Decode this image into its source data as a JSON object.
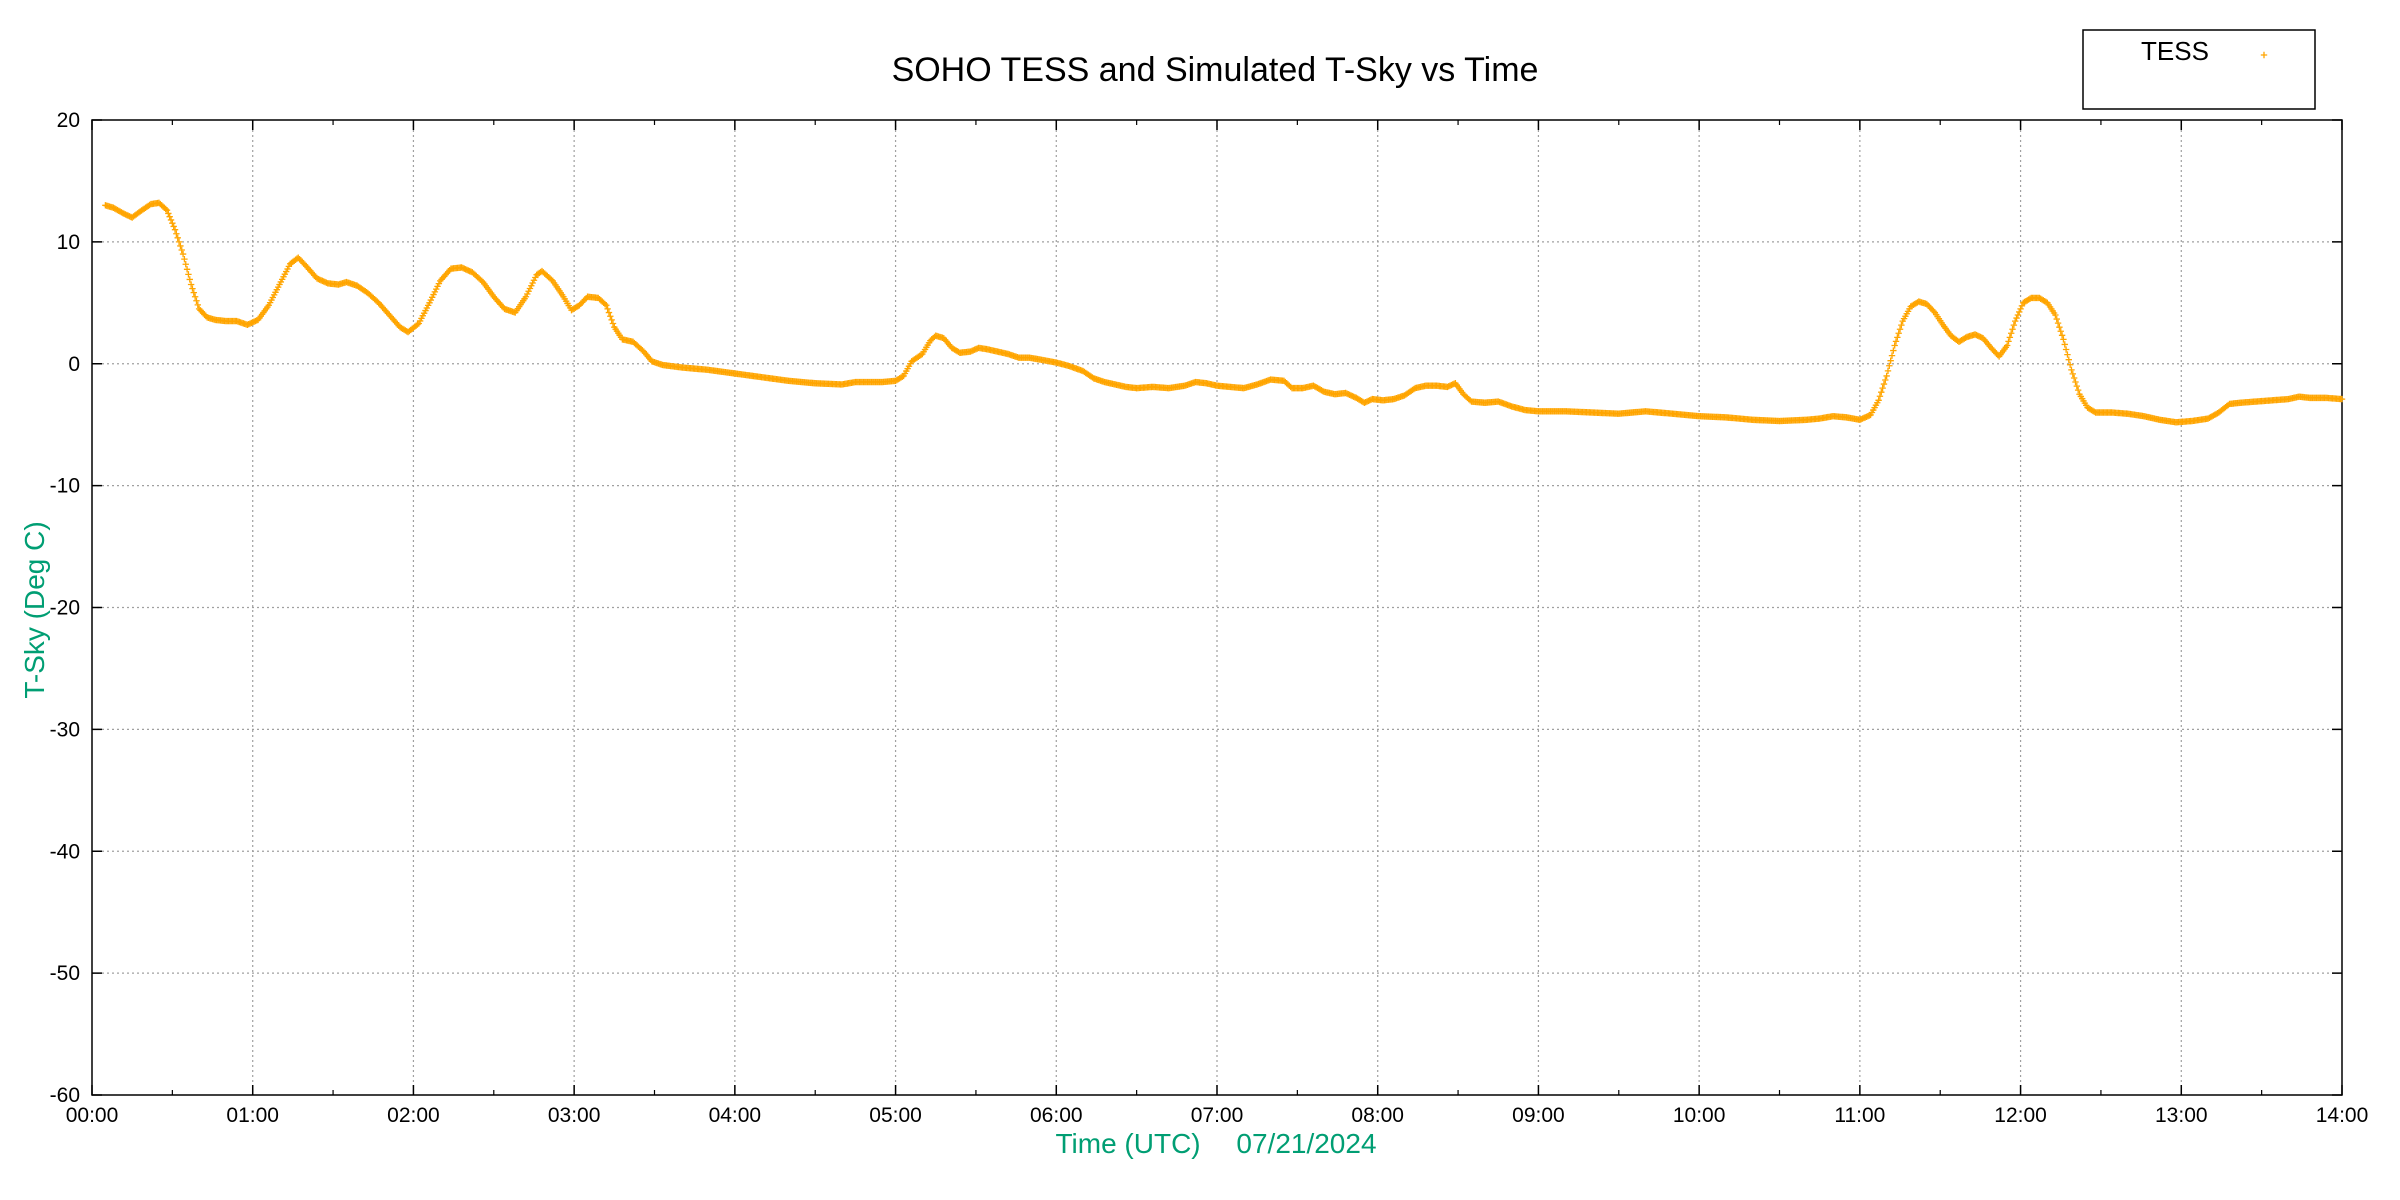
{
  "colors": {
    "series": "#ffa500",
    "axis_label": "#009e73",
    "grid": "#a0a0a0",
    "frame": "#000000"
  },
  "chart_data": {
    "type": "scatter",
    "title": "SOHO TESS and Simulated T-Sky vs Time",
    "xlabel": "Time (UTC)",
    "xlabel_date": "07/21/2024",
    "ylabel": "T-Sky (Deg C)",
    "xlim": [
      "00:00",
      "14:00"
    ],
    "ylim": [
      -60,
      20
    ],
    "xticks": [
      "00:00",
      "01:00",
      "02:00",
      "03:00",
      "04:00",
      "05:00",
      "06:00",
      "07:00",
      "08:00",
      "09:00",
      "10:00",
      "11:00",
      "12:00",
      "13:00",
      "14:00"
    ],
    "yticks": [
      20,
      10,
      0,
      -10,
      -20,
      -30,
      -40,
      -50,
      -60
    ],
    "grid": true,
    "legend": "top-right",
    "marker": "+",
    "series": [
      {
        "name": "TESS",
        "points": [
          [
            "00:05",
            13.0
          ],
          [
            "00:08",
            12.8
          ],
          [
            "00:12",
            12.3
          ],
          [
            "00:15",
            12.0
          ],
          [
            "00:18",
            12.5
          ],
          [
            "00:22",
            13.1
          ],
          [
            "00:25",
            13.2
          ],
          [
            "00:28",
            12.6
          ],
          [
            "00:31",
            11.0
          ],
          [
            "00:34",
            9.0
          ],
          [
            "00:37",
            6.5
          ],
          [
            "00:40",
            4.5
          ],
          [
            "00:43",
            3.8
          ],
          [
            "00:46",
            3.6
          ],
          [
            "00:50",
            3.5
          ],
          [
            "00:54",
            3.5
          ],
          [
            "00:58",
            3.2
          ],
          [
            "01:02",
            3.6
          ],
          [
            "01:06",
            4.8
          ],
          [
            "01:10",
            6.5
          ],
          [
            "01:14",
            8.2
          ],
          [
            "01:17",
            8.7
          ],
          [
            "01:20",
            8.0
          ],
          [
            "01:24",
            7.0
          ],
          [
            "01:28",
            6.6
          ],
          [
            "01:32",
            6.5
          ],
          [
            "01:35",
            6.7
          ],
          [
            "01:39",
            6.4
          ],
          [
            "01:43",
            5.8
          ],
          [
            "01:47",
            5.0
          ],
          [
            "01:51",
            4.0
          ],
          [
            "01:55",
            3.0
          ],
          [
            "01:58",
            2.6
          ],
          [
            "02:02",
            3.3
          ],
          [
            "02:06",
            5.0
          ],
          [
            "02:10",
            6.8
          ],
          [
            "02:14",
            7.8
          ],
          [
            "02:18",
            7.9
          ],
          [
            "02:22",
            7.5
          ],
          [
            "02:26",
            6.7
          ],
          [
            "02:30",
            5.5
          ],
          [
            "02:34",
            4.5
          ],
          [
            "02:38",
            4.2
          ],
          [
            "02:42",
            5.5
          ],
          [
            "02:46",
            7.3
          ],
          [
            "02:48",
            7.6
          ],
          [
            "02:52",
            6.8
          ],
          [
            "02:56",
            5.5
          ],
          [
            "02:59",
            4.4
          ],
          [
            "03:02",
            4.8
          ],
          [
            "03:05",
            5.5
          ],
          [
            "03:09",
            5.4
          ],
          [
            "03:12",
            4.8
          ],
          [
            "03:15",
            3.0
          ],
          [
            "03:18",
            2.0
          ],
          [
            "03:22",
            1.8
          ],
          [
            "03:26",
            1.0
          ],
          [
            "03:29",
            0.2
          ],
          [
            "03:33",
            -0.1
          ],
          [
            "03:40",
            -0.3
          ],
          [
            "03:50",
            -0.5
          ],
          [
            "04:00",
            -0.8
          ],
          [
            "04:10",
            -1.1
          ],
          [
            "04:20",
            -1.4
          ],
          [
            "04:30",
            -1.6
          ],
          [
            "04:40",
            -1.7
          ],
          [
            "04:45",
            -1.5
          ],
          [
            "04:55",
            -1.5
          ],
          [
            "05:00",
            -1.4
          ],
          [
            "05:03",
            -1.0
          ],
          [
            "05:06",
            0.2
          ],
          [
            "05:10",
            0.8
          ],
          [
            "05:13",
            1.9
          ],
          [
            "05:15",
            2.3
          ],
          [
            "05:18",
            2.1
          ],
          [
            "05:21",
            1.3
          ],
          [
            "05:24",
            0.9
          ],
          [
            "05:28",
            1.0
          ],
          [
            "05:31",
            1.3
          ],
          [
            "05:34",
            1.2
          ],
          [
            "05:38",
            1.0
          ],
          [
            "05:42",
            0.8
          ],
          [
            "05:46",
            0.5
          ],
          [
            "05:50",
            0.5
          ],
          [
            "05:55",
            0.3
          ],
          [
            "06:00",
            0.1
          ],
          [
            "06:05",
            -0.2
          ],
          [
            "06:10",
            -0.6
          ],
          [
            "06:14",
            -1.2
          ],
          [
            "06:18",
            -1.5
          ],
          [
            "06:22",
            -1.7
          ],
          [
            "06:26",
            -1.9
          ],
          [
            "06:30",
            -2.0
          ],
          [
            "06:36",
            -1.9
          ],
          [
            "06:42",
            -2.0
          ],
          [
            "06:48",
            -1.8
          ],
          [
            "06:52",
            -1.5
          ],
          [
            "06:56",
            -1.6
          ],
          [
            "07:00",
            -1.8
          ],
          [
            "07:05",
            -1.9
          ],
          [
            "07:10",
            -2.0
          ],
          [
            "07:15",
            -1.7
          ],
          [
            "07:20",
            -1.3
          ],
          [
            "07:25",
            -1.4
          ],
          [
            "07:28",
            -2.0
          ],
          [
            "07:32",
            -2.0
          ],
          [
            "07:36",
            -1.8
          ],
          [
            "07:40",
            -2.3
          ],
          [
            "07:44",
            -2.5
          ],
          [
            "07:48",
            -2.4
          ],
          [
            "07:52",
            -2.8
          ],
          [
            "07:55",
            -3.2
          ],
          [
            "07:58",
            -2.9
          ],
          [
            "08:02",
            -3.0
          ],
          [
            "08:06",
            -2.9
          ],
          [
            "08:10",
            -2.6
          ],
          [
            "08:14",
            -2.0
          ],
          [
            "08:18",
            -1.8
          ],
          [
            "08:22",
            -1.8
          ],
          [
            "08:26",
            -1.9
          ],
          [
            "08:29",
            -1.6
          ],
          [
            "08:32",
            -2.5
          ],
          [
            "08:35",
            -3.1
          ],
          [
            "08:40",
            -3.2
          ],
          [
            "08:45",
            -3.1
          ],
          [
            "08:50",
            -3.5
          ],
          [
            "08:55",
            -3.8
          ],
          [
            "09:00",
            -3.9
          ],
          [
            "09:10",
            -3.9
          ],
          [
            "09:20",
            -4.0
          ],
          [
            "09:30",
            -4.1
          ],
          [
            "09:40",
            -3.9
          ],
          [
            "09:50",
            -4.1
          ],
          [
            "10:00",
            -4.3
          ],
          [
            "10:10",
            -4.4
          ],
          [
            "10:20",
            -4.6
          ],
          [
            "10:30",
            -4.7
          ],
          [
            "10:40",
            -4.6
          ],
          [
            "10:45",
            -4.5
          ],
          [
            "10:50",
            -4.3
          ],
          [
            "10:55",
            -4.4
          ],
          [
            "11:00",
            -4.6
          ],
          [
            "11:04",
            -4.2
          ],
          [
            "11:07",
            -3.0
          ],
          [
            "11:10",
            -1.0
          ],
          [
            "11:13",
            1.5
          ],
          [
            "11:16",
            3.5
          ],
          [
            "11:19",
            4.7
          ],
          [
            "11:22",
            5.1
          ],
          [
            "11:25",
            4.9
          ],
          [
            "11:28",
            4.2
          ],
          [
            "11:31",
            3.2
          ],
          [
            "11:34",
            2.3
          ],
          [
            "11:37",
            1.8
          ],
          [
            "11:40",
            2.2
          ],
          [
            "11:43",
            2.4
          ],
          [
            "11:46",
            2.1
          ],
          [
            "11:49",
            1.3
          ],
          [
            "11:52",
            0.6
          ],
          [
            "11:55",
            1.5
          ],
          [
            "11:58",
            3.5
          ],
          [
            "12:01",
            5.0
          ],
          [
            "12:04",
            5.4
          ],
          [
            "12:07",
            5.4
          ],
          [
            "12:10",
            5.0
          ],
          [
            "12:13",
            4.0
          ],
          [
            "12:16",
            2.0
          ],
          [
            "12:19",
            -0.5
          ],
          [
            "12:22",
            -2.5
          ],
          [
            "12:25",
            -3.6
          ],
          [
            "12:28",
            -4.0
          ],
          [
            "12:34",
            -4.0
          ],
          [
            "12:40",
            -4.1
          ],
          [
            "12:46",
            -4.3
          ],
          [
            "12:52",
            -4.6
          ],
          [
            "12:58",
            -4.8
          ],
          [
            "13:04",
            -4.7
          ],
          [
            "13:10",
            -4.5
          ],
          [
            "13:14",
            -4.0
          ],
          [
            "13:18",
            -3.3
          ],
          [
            "13:22",
            -3.2
          ],
          [
            "13:28",
            -3.1
          ],
          [
            "13:34",
            -3.0
          ],
          [
            "13:40",
            -2.9
          ],
          [
            "13:44",
            -2.7
          ],
          [
            "13:48",
            -2.8
          ],
          [
            "13:54",
            -2.8
          ],
          [
            "14:00",
            -2.9
          ]
        ]
      }
    ]
  }
}
